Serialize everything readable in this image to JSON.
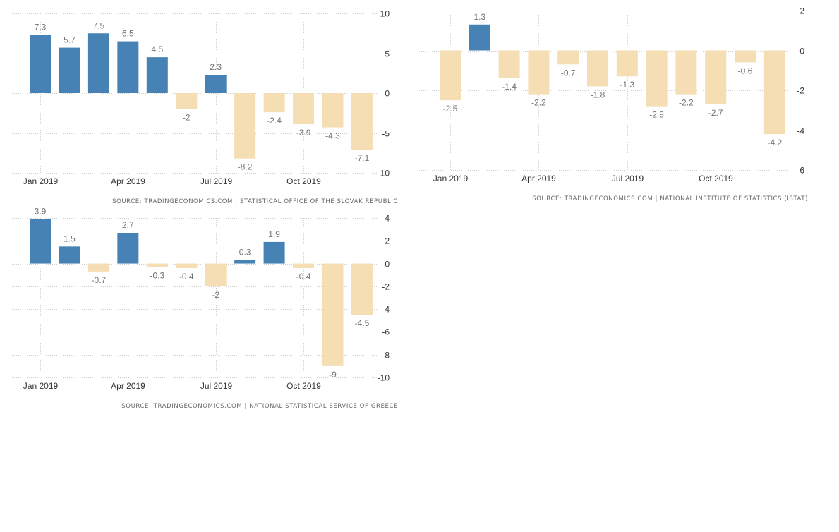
{
  "colors": {
    "positive": "#4682b4",
    "negative": "#f5deb3",
    "grid": "#cfcfcf",
    "label": "#737373",
    "axis_text": "#333333"
  },
  "chart_data": [
    {
      "type": "bar",
      "title": "",
      "xlabel": "",
      "ylabel": "",
      "ylim": [
        -10,
        10
      ],
      "yticks": [
        10,
        5,
        0,
        -5,
        -10
      ],
      "yticklabels": [
        "10",
        "5",
        "0",
        "-5",
        "-10"
      ],
      "periods": [
        "Jan 2019",
        "Feb 2019",
        "Mar 2019",
        "Apr 2019",
        "May 2019",
        "Jun 2019",
        "Jul 2019",
        "Aug 2019",
        "Sep 2019",
        "Oct 2019",
        "Nov 2019",
        "Dec 2019"
      ],
      "xtick_labels": [
        {
          "index": 0,
          "label": "Jan 2019"
        },
        {
          "index": 3,
          "label": "Apr 2019"
        },
        {
          "index": 6,
          "label": "Jul 2019"
        },
        {
          "index": 9,
          "label": "Oct 2019"
        }
      ],
      "values": [
        7.3,
        5.7,
        7.5,
        6.5,
        4.5,
        -2,
        2.3,
        -8.2,
        -2.4,
        -3.9,
        -4.3,
        -7.1
      ],
      "data_labels": [
        "7.3",
        "5.7",
        "7.5",
        "6.5",
        "4.5",
        "-2",
        "2.3",
        "-8.2",
        "-2.4",
        "-3.9",
        "-4.3",
        "-7.1"
      ],
      "source": "SOURCE: TRADINGECONOMICS.COM | STATISTICAL OFFICE OF THE SLOVAK REPUBLIC"
    },
    {
      "type": "bar",
      "title": "",
      "xlabel": "",
      "ylabel": "",
      "ylim": [
        -6,
        2
      ],
      "yticks": [
        2,
        0,
        -2,
        -4,
        -6
      ],
      "yticklabels": [
        "2",
        "0",
        "-2",
        "-4",
        "-6"
      ],
      "periods": [
        "Jan 2019",
        "Feb 2019",
        "Mar 2019",
        "Apr 2019",
        "May 2019",
        "Jun 2019",
        "Jul 2019",
        "Aug 2019",
        "Sep 2019",
        "Oct 2019",
        "Nov 2019",
        "Dec 2019"
      ],
      "xtick_labels": [
        {
          "index": 0,
          "label": "Jan 2019"
        },
        {
          "index": 3,
          "label": "Apr 2019"
        },
        {
          "index": 6,
          "label": "Jul 2019"
        },
        {
          "index": 9,
          "label": "Oct 2019"
        }
      ],
      "values": [
        -2.5,
        1.3,
        -1.4,
        -2.2,
        -0.7,
        -1.8,
        -1.3,
        -2.8,
        -2.2,
        -2.7,
        -0.6,
        -4.2
      ],
      "data_labels": [
        "-2.5",
        "1.3",
        "-1.4",
        "-2.2",
        "-0.7",
        "-1.8",
        "-1.3",
        "-2.8",
        "-2.2",
        "-2.7",
        "-0.6",
        "-4.2"
      ],
      "source": "SOURCE: TRADINGECONOMICS.COM | NATIONAL INSTITUTE OF STATISTICS (ISTAT)"
    },
    {
      "type": "bar",
      "title": "",
      "xlabel": "",
      "ylabel": "",
      "ylim": [
        -10,
        4
      ],
      "yticks": [
        4,
        2,
        0,
        -2,
        -4,
        -6,
        -8,
        -10
      ],
      "yticklabels": [
        "4",
        "2",
        "0",
        "-2",
        "-4",
        "-6",
        "-8",
        "-10"
      ],
      "periods": [
        "Jan 2019",
        "Feb 2019",
        "Mar 2019",
        "Apr 2019",
        "May 2019",
        "Jun 2019",
        "Jul 2019",
        "Aug 2019",
        "Sep 2019",
        "Oct 2019",
        "Nov 2019",
        "Dec 2019"
      ],
      "xtick_labels": [
        {
          "index": 0,
          "label": "Jan 2019"
        },
        {
          "index": 3,
          "label": "Apr 2019"
        },
        {
          "index": 6,
          "label": "Jul 2019"
        },
        {
          "index": 9,
          "label": "Oct 2019"
        }
      ],
      "values": [
        3.9,
        1.5,
        -0.7,
        2.7,
        -0.3,
        -0.4,
        -2,
        0.3,
        1.9,
        -0.4,
        -9,
        -4.5
      ],
      "data_labels": [
        "3.9",
        "1.5",
        "-0.7",
        "2.7",
        "-0.3",
        "-0.4",
        "-2",
        "0.3",
        "1.9",
        "-0.4",
        "-9",
        "-4.5"
      ],
      "source": "SOURCE: TRADINGECONOMICS.COM | NATIONAL STATISTICAL SERVICE OF GREECE"
    }
  ]
}
